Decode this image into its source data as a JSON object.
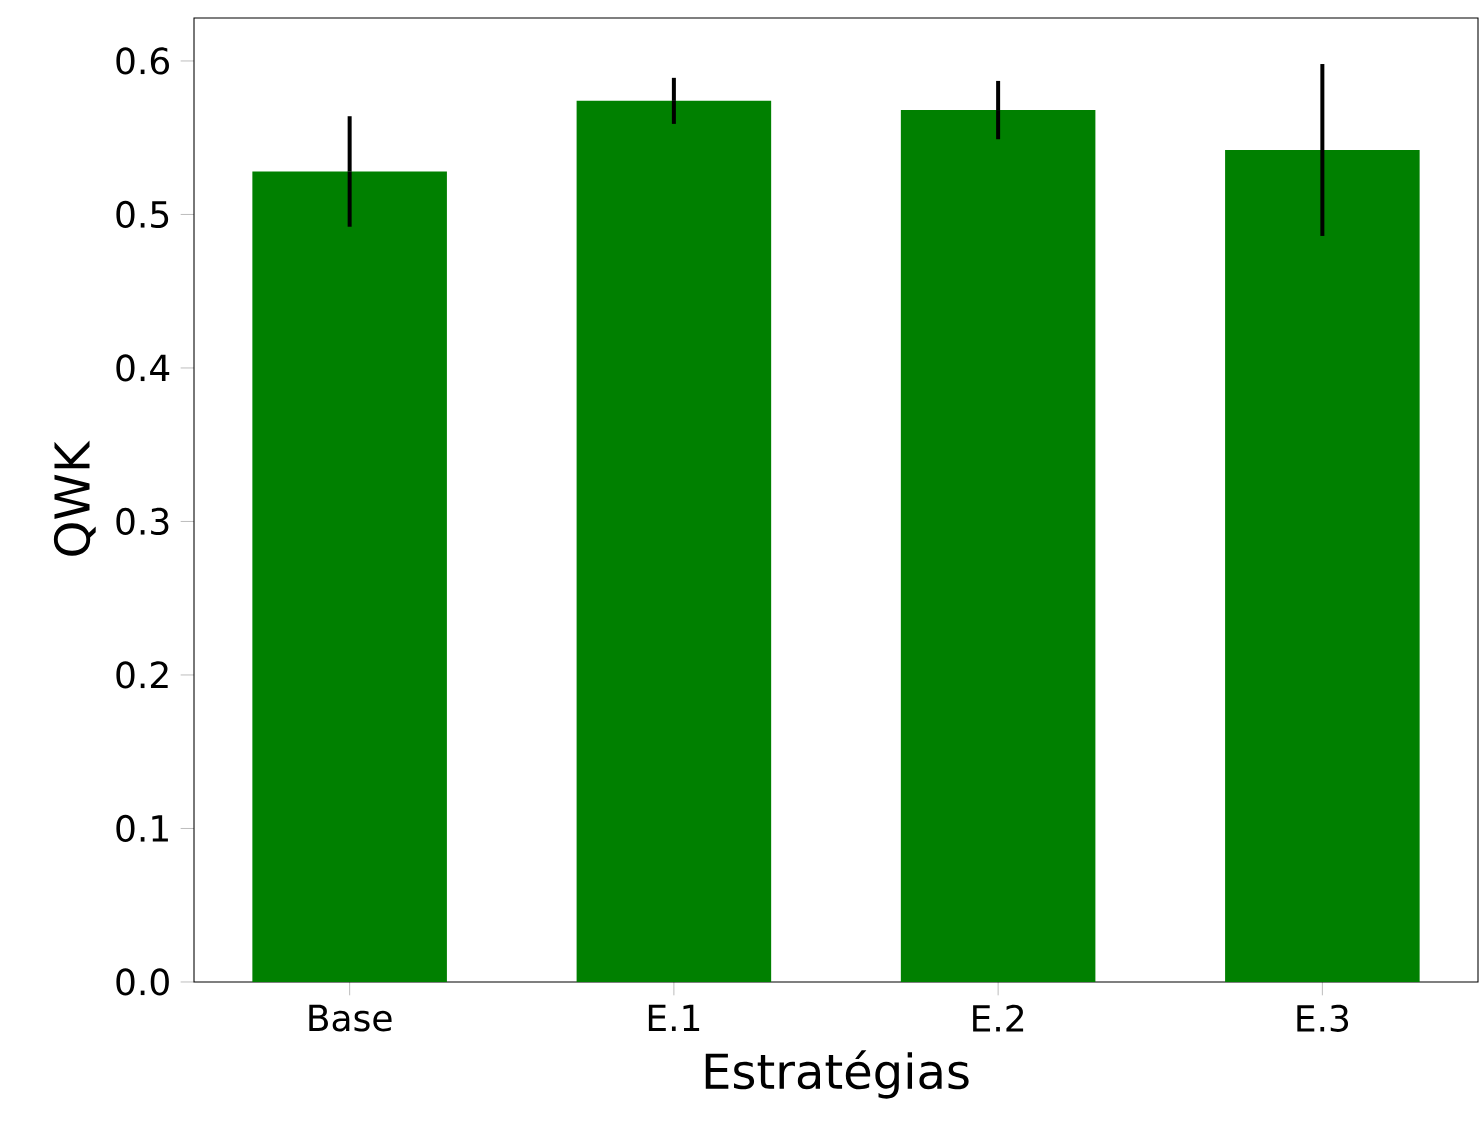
{
  "chart_data": {
    "type": "bar",
    "xlabel": "Estratégias",
    "ylabel": "QWK",
    "categories": [
      "Base",
      "E.1",
      "E.2",
      "E.3"
    ],
    "values": [
      0.528,
      0.574,
      0.568,
      0.542
    ],
    "errors": [
      0.036,
      0.015,
      0.019,
      0.056
    ],
    "color": "#008000",
    "ylim": [
      0,
      0.628
    ],
    "yticks": [
      {
        "value": 0,
        "label": "0.0"
      },
      0.1,
      0.2,
      0.3,
      0.4,
      0.5,
      0.6
    ]
  }
}
